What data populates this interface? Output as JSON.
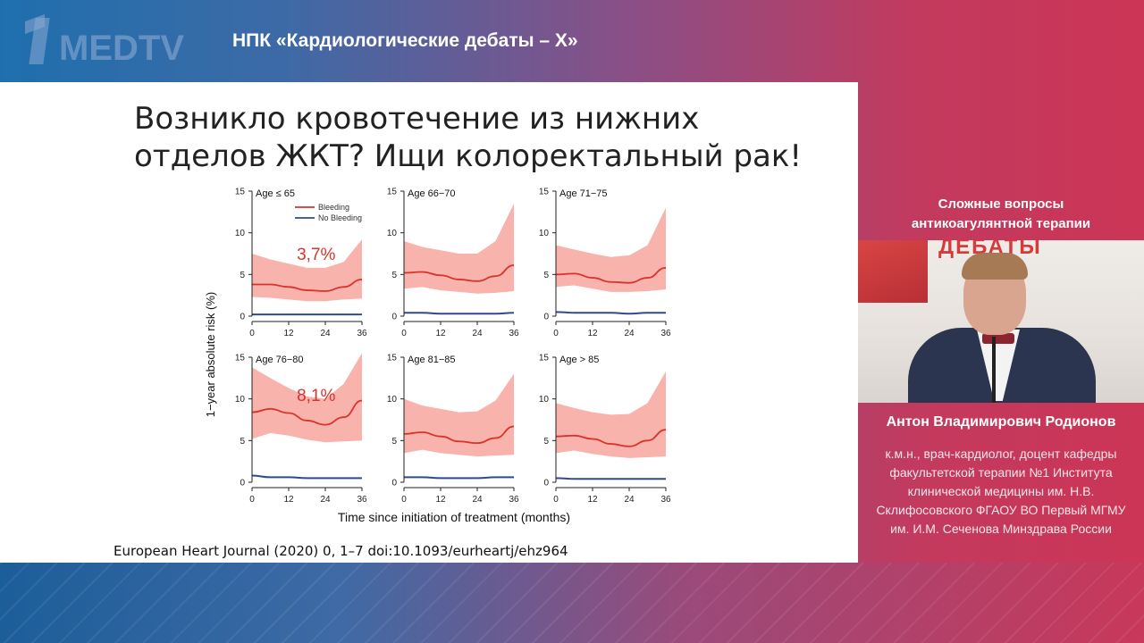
{
  "header": {
    "logo_text": "MEDTV",
    "title": "НПК «Кардиологические дебаты – X»"
  },
  "slide": {
    "title_lines": [
      "Возникло кровотечение из нижних",
      "отделов ЖКТ? Ищи колоректальный рак!"
    ],
    "citation": "European Heart Journal (2020) 0, 1–7 doi:10.1093/eurheartj/ehz964"
  },
  "side": {
    "topic_lines": [
      "Сложные вопросы",
      "антикоагулянтной терапии"
    ],
    "video_banner_text": "ДЕБАТЫ",
    "speaker_name": "Антон Владимирович Родионов",
    "speaker_desc_lines": [
      "к.м.н., врач-кардиолог, доцент кафедры",
      "факультетской терапии №1 Института",
      "клинической медицины им. Н.В.",
      "Склифосовского ФГАОУ ВО Первый МГМУ",
      "им. И.М. Сеченова Минздрава России"
    ]
  },
  "chart_data": {
    "type": "line",
    "ylabel": "1−year absolute risk (%)",
    "xlabel": "Time since initiation of treatment (months)",
    "x_ticks": [
      0,
      12,
      24,
      36
    ],
    "y_ticks": [
      0,
      5,
      10,
      15
    ],
    "xlim": [
      0,
      36
    ],
    "ylim": [
      0,
      15
    ],
    "legend": {
      "placement": "top-right of first panel",
      "entries": [
        "Bleeding",
        "No Bleeding"
      ]
    },
    "colors": {
      "bleeding": "#d9332b",
      "bleeding_band": "#f7b3ac",
      "no_bleeding": "#2f4a8f"
    },
    "panels": [
      {
        "title": "Age ≤ 65",
        "annotation": "3,7%",
        "x": [
          0,
          6,
          12,
          18,
          24,
          30,
          36
        ],
        "bleeding": [
          3.8,
          3.8,
          3.5,
          3.1,
          3.0,
          3.5,
          4.4
        ],
        "bleeding_lower": [
          2.3,
          2.2,
          2.0,
          1.8,
          1.8,
          2.0,
          2.1
        ],
        "bleeding_upper": [
          7.5,
          6.8,
          6.3,
          5.8,
          5.8,
          6.5,
          9.2
        ],
        "no_bleeding": [
          0.2,
          0.2,
          0.2,
          0.2,
          0.2,
          0.2,
          0.2
        ]
      },
      {
        "title": "Age 66−70",
        "annotation": "",
        "x": [
          0,
          6,
          12,
          18,
          24,
          30,
          36
        ],
        "bleeding": [
          5.2,
          5.3,
          4.9,
          4.4,
          4.2,
          4.8,
          6.1
        ],
        "bleeding_lower": [
          3.3,
          3.5,
          3.1,
          2.9,
          2.7,
          2.8,
          3.0
        ],
        "bleeding_upper": [
          9.0,
          8.3,
          7.9,
          7.5,
          7.5,
          9.0,
          13.5
        ],
        "no_bleeding": [
          0.4,
          0.4,
          0.3,
          0.3,
          0.3,
          0.3,
          0.4
        ]
      },
      {
        "title": "Age 71−75",
        "annotation": "",
        "x": [
          0,
          6,
          12,
          18,
          24,
          30,
          36
        ],
        "bleeding": [
          5.0,
          5.1,
          4.6,
          4.1,
          4.0,
          4.6,
          5.8
        ],
        "bleeding_lower": [
          3.5,
          3.7,
          3.3,
          2.9,
          2.9,
          3.0,
          3.2
        ],
        "bleeding_upper": [
          8.5,
          8.0,
          7.5,
          7.1,
          7.3,
          8.5,
          13.0
        ],
        "no_bleeding": [
          0.5,
          0.4,
          0.4,
          0.4,
          0.3,
          0.4,
          0.4
        ]
      },
      {
        "title": "Age 76−80",
        "annotation": "8,1%",
        "x": [
          0,
          6,
          12,
          18,
          24,
          30,
          36
        ],
        "bleeding": [
          8.4,
          8.8,
          8.3,
          7.4,
          6.9,
          7.8,
          9.8
        ],
        "bleeding_lower": [
          5.2,
          5.9,
          5.6,
          5.1,
          4.8,
          4.9,
          5.0
        ],
        "bleeding_upper": [
          13.8,
          12.5,
          11.3,
          10.3,
          10.0,
          11.8,
          15.5
        ],
        "no_bleeding": [
          0.8,
          0.6,
          0.6,
          0.5,
          0.5,
          0.5,
          0.5
        ]
      },
      {
        "title": "Age 81−85",
        "annotation": "",
        "x": [
          0,
          6,
          12,
          18,
          24,
          30,
          36
        ],
        "bleeding": [
          5.8,
          6.0,
          5.5,
          4.9,
          4.7,
          5.3,
          6.7
        ],
        "bleeding_lower": [
          3.5,
          3.9,
          3.5,
          3.3,
          3.1,
          3.2,
          3.3
        ],
        "bleeding_upper": [
          10.0,
          9.2,
          8.8,
          8.4,
          8.5,
          9.8,
          13.0
        ],
        "no_bleeding": [
          0.6,
          0.6,
          0.5,
          0.5,
          0.5,
          0.6,
          0.6
        ]
      },
      {
        "title": "Age > 85",
        "annotation": "",
        "x": [
          0,
          6,
          12,
          18,
          24,
          30,
          36
        ],
        "bleeding": [
          5.5,
          5.6,
          5.2,
          4.6,
          4.3,
          5.0,
          6.3
        ],
        "bleeding_lower": [
          3.5,
          3.8,
          3.4,
          3.1,
          2.9,
          3.0,
          3.1
        ],
        "bleeding_upper": [
          9.5,
          8.9,
          8.4,
          8.1,
          8.2,
          9.5,
          13.3
        ],
        "no_bleeding": [
          0.5,
          0.4,
          0.4,
          0.4,
          0.4,
          0.4,
          0.4
        ]
      }
    ]
  }
}
